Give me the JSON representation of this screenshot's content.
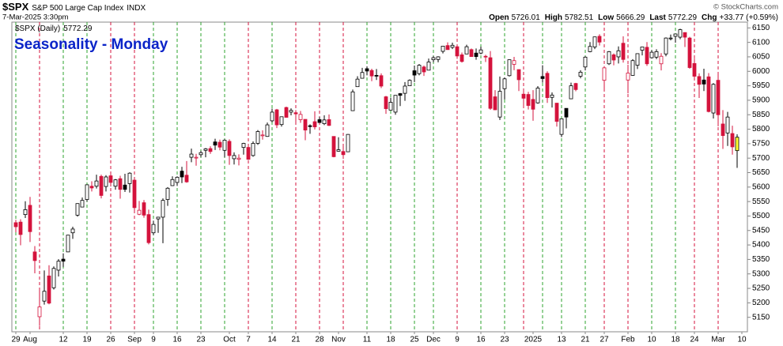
{
  "header": {
    "symbol": "$SPX",
    "name": "S&P 500 Large Cap Index",
    "exchange": "INDX",
    "timestamp": "7-Mar-2025 3:30pm",
    "open_label": "Open",
    "high_label": "High",
    "low_label": "Low",
    "last_label": "Last",
    "chg_label": "Chg",
    "chg": "+33.77 (+0.59%)",
    "copyright": "© StockCharts.com"
  },
  "chart_data": {
    "type": "candlestick",
    "title": "Seasonality - Monday",
    "legend": "$SPX (Daily)",
    "categories": [
      "29",
      null,
      null,
      "Aug",
      null,
      null,
      null,
      null,
      null,
      null,
      "12",
      null,
      null,
      null,
      null,
      "19",
      null,
      null,
      null,
      null,
      "26",
      null,
      null,
      null,
      null,
      "Sep",
      null,
      null,
      null,
      "9",
      null,
      null,
      null,
      null,
      "16",
      null,
      null,
      null,
      null,
      "23",
      null,
      null,
      null,
      null,
      null,
      "Oct",
      null,
      null,
      null,
      "7",
      null,
      null,
      null,
      null,
      "14",
      null,
      null,
      null,
      null,
      "21",
      null,
      null,
      null,
      null,
      "28",
      null,
      null,
      null,
      "Nov",
      null,
      null,
      null,
      null,
      null,
      "11",
      null,
      null,
      null,
      null,
      "18",
      null,
      null,
      null,
      null,
      "25",
      null,
      null,
      null,
      "Dec",
      null,
      null,
      null,
      null,
      "9",
      null,
      null,
      null,
      null,
      "16",
      null,
      null,
      null,
      null,
      "23",
      null,
      null,
      null,
      null,
      null,
      "2025",
      null,
      null,
      null,
      null,
      null,
      "13",
      null,
      null,
      null,
      null,
      "21",
      null,
      null,
      null,
      "27",
      null,
      null,
      null,
      null,
      "Feb",
      null,
      null,
      null,
      null,
      "10",
      null,
      null,
      null,
      null,
      "18",
      null,
      null,
      null,
      "24",
      null,
      null,
      null,
      null,
      "Mar",
      null,
      null,
      null,
      null,
      "10"
    ],
    "open": [
      5477,
      5479,
      5505,
      5537,
      5376,
      5152,
      5206,
      5293,
      5252,
      5313,
      5351,
      5376,
      5442,
      5503,
      5531,
      5557,
      5603,
      5603,
      5637,
      5602,
      5639,
      5603,
      5629,
      5607,
      5612,
      5624,
      5506,
      5546,
      5505,
      5442,
      5490,
      5496,
      5557,
      5605,
      5616,
      5655,
      5641,
      5703,
      5702,
      5712,
      5727,
      5733,
      5756,
      5755,
      5727,
      5758,
      5698,
      5696,
      5737,
      5737,
      5709,
      5751,
      5778,
      5775,
      5829,
      5867,
      5816,
      5875,
      5859,
      5857,
      5833,
      5834,
      5812,
      5826,
      5833,
      5819,
      5833,
      5775,
      5724,
      5723,
      5722,
      5864,
      5947,
      5976,
      6009,
      6003,
      5986,
      5985,
      5912,
      5866,
      5859,
      5923,
      5924,
      5950,
      6002,
      5992,
      6015,
      6004,
      6040,
      6041,
      6069,
      6089,
      6083,
      6085,
      6057,
      6060,
      6075,
      6063,
      6063,
      6052,
      6047,
      5912,
      5842,
      5940,
      5985,
      6024,
      6006,
      5921,
      5920,
      5903,
      5891,
      5982,
      5993,
      5910,
      5890,
      5782,
      5872,
      5905,
      5958,
      5983,
      6015,
      6068,
      6084,
      6121,
      5969,
      6026,
      6057,
      6050,
      6097,
      5970,
      5986,
      6021,
      6073,
      6083,
      6047,
      6049,
      6026,
      6060,
      6115,
      6121,
      6118,
      6134,
      6115,
      6027,
      5982,
      5970,
      5981,
      5856,
      5969,
      5818,
      5787,
      5785,
      5726.01,
      null
    ],
    "high": [
      5487,
      5489,
      5551,
      5566,
      5396,
      5250,
      5312,
      5330,
      5326,
      5351,
      5371,
      5434,
      5463,
      5544,
      5564,
      5608,
      5620,
      5643,
      5643,
      5641,
      5651,
      5628,
      5639,
      5646,
      5651,
      5625,
      5552,
      5555,
      5522,
      5484,
      5497,
      5561,
      5600,
      5637,
      5637,
      5670,
      5690,
      5733,
      5715,
      5725,
      5735,
      5741,
      5767,
      5764,
      5765,
      5765,
      5720,
      5713,
      5753,
      5740,
      5758,
      5797,
      5796,
      5823,
      5871,
      5870,
      5843,
      5878,
      5872,
      5866,
      5863,
      5834,
      5817,
      5862,
      5842,
      5848,
      5851,
      5775,
      5772,
      5741,
      5783,
      5937,
      5983,
      6012,
      6017,
      6009,
      6008,
      5993,
      5915,
      5909,
      5918,
      5925,
      5963,
      5972,
      6020,
      6025,
      6020,
      6044,
      6053,
      6052,
      6087,
      6100,
      6099,
      6088,
      6065,
      6092,
      6079,
      6079,
      6085,
      6057,
      6070,
      5935,
      5982,
      5979,
      6041,
      6050,
      6006,
      5941,
      5929,
      5935,
      5949,
      6021,
      6000,
      5927,
      5891,
      5837,
      5871,
      5961,
      5960,
      6004,
      6052,
      6101,
      6119,
      6128,
      6018,
      6070,
      6062,
      6086,
      6121,
      6023,
      6042,
      6062,
      6084,
      6101,
      6073,
      6076,
      6063,
      6117,
      6127,
      6129,
      6147,
      6134,
      6119,
      6044,
      5993,
      6009,
      5994,
      5959,
      5987,
      5866,
      5860,
      5812,
      5782.51,
      null
    ],
    "low": [
      5444,
      5399,
      5493,
      5410,
      5302,
      5120,
      5194,
      5195,
      5246,
      5291,
      5324,
      5376,
      5421,
      5498,
      5530,
      5550,
      5585,
      5595,
      5561,
      5585,
      5602,
      5591,
      5560,
      5583,
      5581,
      5519,
      5503,
      5494,
      5402,
      5434,
      5442,
      5406,
      5535,
      5604,
      5604,
      5614,
      5615,
      5686,
      5674,
      5704,
      5703,
      5715,
      5728,
      5727,
      5703,
      5677,
      5678,
      5675,
      5712,
      5694,
      5705,
      5746,
      5764,
      5774,
      5824,
      5804,
      5809,
      5840,
      5848,
      5824,
      5822,
      5762,
      5784,
      5799,
      5823,
      5814,
      5811,
      5703,
      5723,
      5697,
      5722,
      5864,
      5947,
      5976,
      5986,
      5966,
      5970,
      5942,
      5853,
      5866,
      5850,
      5880,
      5898,
      5949,
      5963,
      5986,
      5984,
      6004,
      6031,
      6031,
      6062,
      6075,
      6077,
      6043,
      6030,
      6060,
      6051,
      6040,
      6059,
      6032,
      5867,
      5866,
      5832,
      5903,
      5982,
      6004,
      5932,
      5879,
      5868,
      5829,
      5888,
      5961,
      5891,
      5875,
      5809,
      5773,
      5803,
      5905,
      5931,
      5976,
      6003,
      6066,
      6077,
      6089,
      5932,
      6022,
      6021,
      6027,
      6030,
      5924,
      5985,
      6008,
      6055,
      6019,
      6044,
      6042,
      6003,
      6052,
      6107,
      6099,
      6111,
      6084,
      6009,
      5977,
      5908,
      5932,
      5858,
      5837,
      5810,
      5732,
      5742,
      5712,
      5666.29,
      null
    ],
    "close": [
      5463,
      5436,
      5522,
      5446,
      5346,
      5186,
      5240,
      5199,
      5319,
      5344,
      5344,
      5434,
      5455,
      5543,
      5554,
      5608,
      5597,
      5621,
      5571,
      5635,
      5616,
      5625,
      5592,
      5592,
      5648,
      5529,
      5520,
      5503,
      5408,
      5471,
      5496,
      5554,
      5596,
      5626,
      5634,
      5635,
      5618,
      5714,
      5703,
      5719,
      5732,
      5723,
      5745,
      5738,
      5762,
      5709,
      5709,
      5700,
      5751,
      5696,
      5751,
      5792,
      5780,
      5815,
      5859,
      5815,
      5843,
      5841,
      5865,
      5853,
      5851,
      5797,
      5809,
      5808,
      5823,
      5832,
      5813,
      5705,
      5729,
      5712,
      5782,
      5929,
      5973,
      5996,
      6001,
      5984,
      5985,
      5949,
      5871,
      5893,
      5917,
      5917,
      5949,
      5969,
      5987,
      6021,
      5998,
      6032,
      6047,
      6050,
      6087,
      6075,
      6090,
      6053,
      6034,
      6085,
      6051,
      6051,
      6074,
      6050,
      5872,
      5867,
      5931,
      5974,
      6040,
      6037,
      5971,
      5907,
      5882,
      5869,
      5942,
      5975,
      5909,
      5918,
      5827,
      5836,
      5842,
      5950,
      5937,
      5997,
      6049,
      6086,
      6119,
      6101,
      6012,
      6068,
      6039,
      6071,
      6041,
      5994,
      6037,
      6061,
      6084,
      6026,
      6066,
      6068,
      6052,
      6115,
      6115,
      6129,
      6144,
      6118,
      6013,
      5983,
      5955,
      5956,
      5861,
      5955,
      5850,
      5778,
      5842,
      5739,
      5772.29,
      null
    ],
    "up_color": "#000000",
    "down_color": "#d4133c",
    "last_fill": "#ffff33",
    "monday_lines": [
      {
        "index": 0,
        "color": "#2ea32e"
      },
      {
        "index": 5,
        "color": "#d4133c"
      },
      {
        "index": 10,
        "color": "#2ea32e"
      },
      {
        "index": 15,
        "color": "#2ea32e"
      },
      {
        "index": 20,
        "color": "#d4133c"
      },
      {
        "index": 25,
        "color": "#d4133c"
      },
      {
        "index": 29,
        "color": "#2ea32e"
      },
      {
        "index": 34,
        "color": "#2ea32e"
      },
      {
        "index": 39,
        "color": "#2ea32e"
      },
      {
        "index": 44,
        "color": "#2ea32e"
      },
      {
        "index": 49,
        "color": "#d4133c"
      },
      {
        "index": 54,
        "color": "#2ea32e"
      },
      {
        "index": 59,
        "color": "#d4133c"
      },
      {
        "index": 64,
        "color": "#d4133c"
      },
      {
        "index": 69,
        "color": "#d4133c"
      },
      {
        "index": 74,
        "color": "#2ea32e"
      },
      {
        "index": 79,
        "color": "#2ea32e"
      },
      {
        "index": 84,
        "color": "#2ea32e"
      },
      {
        "index": 88,
        "color": "#2ea32e"
      },
      {
        "index": 93,
        "color": "#d4133c"
      },
      {
        "index": 98,
        "color": "#2ea32e"
      },
      {
        "index": 103,
        "color": "#2ea32e"
      },
      {
        "index": 107,
        "color": "#d4133c"
      },
      {
        "index": 111,
        "color": "#2ea32e"
      },
      {
        "index": 115,
        "color": "#2ea32e"
      },
      {
        "index": 120,
        "color": "#2ea32e"
      },
      {
        "index": 124,
        "color": "#d4133c"
      },
      {
        "index": 129,
        "color": "#d4133c"
      },
      {
        "index": 134,
        "color": "#2ea32e"
      },
      {
        "index": 139,
        "color": "#2ea32e"
      },
      {
        "index": 143,
        "color": "#d4133c"
      },
      {
        "index": 148,
        "color": "#d4133c"
      }
    ],
    "ylim": [
      5100,
      6170
    ],
    "yticks": [
      5150,
      5200,
      5250,
      5300,
      5350,
      5400,
      5450,
      5500,
      5550,
      5600,
      5650,
      5700,
      5750,
      5800,
      5850,
      5900,
      5950,
      6000,
      6050,
      6100,
      6150
    ]
  }
}
